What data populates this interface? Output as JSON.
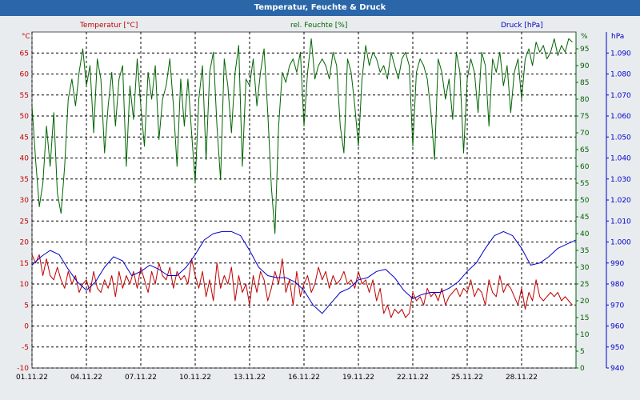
{
  "colors": {
    "temperature": "#c00000",
    "humidity": "#006400",
    "pressure": "#0000c8",
    "frame_bg": "#e9ecef",
    "title_bg": "#2a66a8",
    "plot_bg": "#ffffff",
    "grid": "#000000"
  },
  "chart_data": {
    "type": "line",
    "title": "Temperatur, Feuchte & Druck",
    "x": {
      "start_day": 1,
      "end_day": 31,
      "tick_days": [
        1,
        4,
        7,
        10,
        13,
        16,
        19,
        22,
        25,
        28
      ],
      "tick_labels": [
        "01.11.22",
        "04.11.22",
        "07.11.22",
        "10.11.22",
        "13.11.22",
        "16.11.22",
        "19.11.22",
        "22.11.22",
        "25.11.22",
        "28.11.22"
      ]
    },
    "axes": {
      "temperature": {
        "label": "Temperatur [°C]",
        "unit": "°C",
        "range": [
          -10,
          70
        ],
        "ticks": [
          -10,
          -5,
          0,
          5,
          10,
          15,
          20,
          25,
          30,
          35,
          40,
          45,
          50,
          55,
          60,
          65
        ],
        "tick_labels": [
          "-10",
          "-5",
          "0",
          "5",
          "10",
          "15",
          "20",
          "25",
          "30",
          "35",
          "40",
          "45",
          "50",
          "55",
          "60",
          "65"
        ]
      },
      "humidity": {
        "label": "rel. Feuchte [%]",
        "unit": "%",
        "range": [
          0,
          100
        ],
        "ticks": [
          0,
          5,
          10,
          15,
          20,
          25,
          30,
          35,
          40,
          45,
          50,
          55,
          60,
          65,
          70,
          75,
          80,
          85,
          90,
          95
        ],
        "tick_labels": [
          "0",
          "5",
          "10",
          "15",
          "20",
          "25",
          "30",
          "35",
          "40",
          "45",
          "50",
          "55",
          "60",
          "65",
          "70",
          "75",
          "80",
          "85",
          "90",
          "95"
        ]
      },
      "pressure": {
        "label": "Druck [hPa]",
        "unit": "hPa",
        "range": [
          940,
          1100
        ],
        "ticks": [
          940,
          950,
          960,
          970,
          980,
          990,
          1000,
          1010,
          1020,
          1030,
          1040,
          1050,
          1060,
          1070,
          1080,
          1090
        ],
        "tick_labels": [
          "940",
          "950",
          "960",
          "970",
          "980",
          "990",
          "1.000",
          "1.010",
          "1.020",
          "1.030",
          "1.040",
          "1.050",
          "1.060",
          "1.070",
          "1.080",
          "1.090"
        ]
      }
    },
    "series": [
      {
        "name": "Temperatur [°C]",
        "axis": "temperature",
        "x": [
          1.0,
          1.2,
          1.4,
          1.6,
          1.8,
          2.0,
          2.2,
          2.4,
          2.6,
          2.8,
          3.0,
          3.2,
          3.4,
          3.6,
          3.8,
          4.0,
          4.2,
          4.4,
          4.6,
          4.8,
          5.0,
          5.2,
          5.4,
          5.6,
          5.8,
          6.0,
          6.2,
          6.4,
          6.6,
          6.8,
          7.0,
          7.2,
          7.4,
          7.6,
          7.8,
          8.0,
          8.2,
          8.4,
          8.6,
          8.8,
          9.0,
          9.2,
          9.4,
          9.6,
          9.8,
          10.0,
          10.2,
          10.4,
          10.6,
          10.8,
          11.0,
          11.2,
          11.4,
          11.6,
          11.8,
          12.0,
          12.2,
          12.4,
          12.6,
          12.8,
          13.0,
          13.2,
          13.4,
          13.6,
          13.8,
          14.0,
          14.2,
          14.4,
          14.6,
          14.8,
          15.0,
          15.2,
          15.4,
          15.6,
          15.8,
          16.0,
          16.2,
          16.4,
          16.6,
          16.8,
          17.0,
          17.2,
          17.4,
          17.6,
          17.8,
          18.0,
          18.2,
          18.4,
          18.6,
          18.8,
          19.0,
          19.2,
          19.4,
          19.6,
          19.8,
          20.0,
          20.2,
          20.4,
          20.6,
          20.8,
          21.0,
          21.2,
          21.4,
          21.6,
          21.8,
          22.0,
          22.2,
          22.4,
          22.6,
          22.8,
          23.0,
          23.2,
          23.4,
          23.6,
          23.8,
          24.0,
          24.2,
          24.4,
          24.6,
          24.8,
          25.0,
          25.2,
          25.4,
          25.6,
          25.8,
          26.0,
          26.2,
          26.4,
          26.6,
          26.8,
          27.0,
          27.2,
          27.4,
          27.6,
          27.8,
          28.0,
          28.2,
          28.4,
          28.6,
          28.8,
          29.0,
          29.2,
          29.4,
          29.6,
          29.8,
          30.0,
          30.2,
          30.4,
          30.6,
          30.8
        ],
        "values": [
          17,
          15,
          17,
          12,
          16,
          12,
          11,
          14,
          11,
          9,
          13,
          10,
          12,
          8,
          10,
          11,
          8,
          13,
          9,
          8,
          11,
          9,
          12,
          7,
          13,
          9,
          12,
          10,
          13,
          9,
          14,
          11,
          8,
          13,
          10,
          15,
          12,
          11,
          14,
          9,
          13,
          11,
          12,
          10,
          16,
          12,
          9,
          13,
          7,
          11,
          6,
          15,
          9,
          12,
          10,
          14,
          6,
          12,
          8,
          10,
          5,
          12,
          8,
          13,
          11,
          6,
          9,
          13,
          10,
          16,
          8,
          11,
          5,
          13,
          7,
          10,
          12,
          8,
          10,
          14,
          11,
          13,
          9,
          12,
          10,
          11,
          13,
          10,
          11,
          9,
          13,
          10,
          11,
          8,
          11,
          6,
          9,
          3,
          5,
          2,
          4,
          3,
          4,
          2,
          3,
          8,
          6,
          7,
          5,
          9,
          7,
          8,
          6,
          9,
          5,
          7,
          8,
          9,
          7,
          9,
          8,
          11,
          7,
          9,
          8,
          5,
          11,
          8,
          7,
          12,
          8,
          10,
          9,
          7,
          5,
          9,
          4,
          8,
          6,
          11,
          7,
          6,
          7,
          8,
          7,
          8,
          6,
          7,
          6,
          5
        ]
      },
      {
        "name": "rel. Feuchte [%]",
        "axis": "humidity",
        "x": [
          1.0,
          1.2,
          1.4,
          1.6,
          1.8,
          2.0,
          2.2,
          2.4,
          2.6,
          2.8,
          3.0,
          3.2,
          3.4,
          3.6,
          3.8,
          4.0,
          4.2,
          4.4,
          4.6,
          4.8,
          5.0,
          5.2,
          5.4,
          5.6,
          5.8,
          6.0,
          6.2,
          6.4,
          6.6,
          6.8,
          7.0,
          7.2,
          7.4,
          7.6,
          7.8,
          8.0,
          8.2,
          8.4,
          8.6,
          8.8,
          9.0,
          9.2,
          9.4,
          9.6,
          9.8,
          10.0,
          10.2,
          10.4,
          10.6,
          10.8,
          11.0,
          11.2,
          11.4,
          11.6,
          11.8,
          12.0,
          12.2,
          12.4,
          12.6,
          12.8,
          13.0,
          13.2,
          13.4,
          13.6,
          13.8,
          14.0,
          14.2,
          14.4,
          14.6,
          14.8,
          15.0,
          15.2,
          15.4,
          15.6,
          15.8,
          16.0,
          16.2,
          16.4,
          16.6,
          16.8,
          17.0,
          17.2,
          17.4,
          17.6,
          17.8,
          18.0,
          18.2,
          18.4,
          18.6,
          18.8,
          19.0,
          19.2,
          19.4,
          19.6,
          19.8,
          20.0,
          20.2,
          20.4,
          20.6,
          20.8,
          21.0,
          21.2,
          21.4,
          21.6,
          21.8,
          22.0,
          22.2,
          22.4,
          22.6,
          22.8,
          23.0,
          23.2,
          23.4,
          23.6,
          23.8,
          24.0,
          24.2,
          24.4,
          24.6,
          24.8,
          25.0,
          25.2,
          25.4,
          25.6,
          25.8,
          26.0,
          26.2,
          26.4,
          26.6,
          26.8,
          27.0,
          27.2,
          27.4,
          27.6,
          27.8,
          28.0,
          28.2,
          28.4,
          28.6,
          28.8,
          29.0,
          29.2,
          29.4,
          29.6,
          29.8,
          30.0,
          30.2,
          30.4,
          30.6,
          30.8
        ],
        "values": [
          78,
          62,
          48,
          55,
          72,
          60,
          76,
          52,
          46,
          60,
          80,
          86,
          78,
          88,
          95,
          84,
          90,
          70,
          92,
          86,
          64,
          78,
          88,
          72,
          86,
          90,
          60,
          84,
          74,
          92,
          78,
          66,
          88,
          80,
          90,
          68,
          80,
          84,
          92,
          78,
          60,
          86,
          72,
          86,
          70,
          55,
          80,
          90,
          62,
          88,
          94,
          72,
          56,
          92,
          84,
          70,
          88,
          96,
          60,
          86,
          84,
          92,
          78,
          88,
          95,
          76,
          54,
          40,
          72,
          88,
          85,
          90,
          92,
          88,
          94,
          72,
          88,
          98,
          86,
          90,
          92,
          90,
          86,
          94,
          90,
          72,
          64,
          92,
          88,
          78,
          66,
          86,
          96,
          90,
          94,
          92,
          88,
          90,
          86,
          94,
          90,
          86,
          92,
          94,
          90,
          66,
          88,
          92,
          90,
          86,
          76,
          62,
          92,
          88,
          80,
          86,
          74,
          94,
          88,
          64,
          86,
          92,
          88,
          76,
          94,
          90,
          72,
          92,
          88,
          94,
          84,
          90,
          76,
          88,
          92,
          80,
          92,
          95,
          90,
          97,
          94,
          96,
          92,
          94,
          98,
          93,
          96,
          94,
          98,
          97
        ]
      },
      {
        "name": "Druck [hPa]",
        "axis": "pressure",
        "x": [
          1.0,
          1.5,
          2.0,
          2.5,
          3.0,
          3.5,
          4.0,
          4.5,
          5.0,
          5.5,
          6.0,
          6.5,
          7.0,
          7.5,
          8.0,
          8.5,
          9.0,
          9.5,
          10.0,
          10.5,
          11.0,
          11.5,
          12.0,
          12.5,
          13.0,
          13.5,
          14.0,
          14.5,
          15.0,
          15.5,
          16.0,
          16.5,
          17.0,
          17.5,
          18.0,
          18.5,
          19.0,
          19.5,
          20.0,
          20.5,
          21.0,
          21.5,
          22.0,
          22.5,
          23.0,
          23.5,
          24.0,
          24.5,
          25.0,
          25.5,
          26.0,
          26.5,
          27.0,
          27.5,
          28.0,
          28.5,
          29.0,
          29.5,
          30.0,
          30.5,
          31.0
        ],
        "values": [
          989,
          993,
          996,
          994,
          987,
          981,
          977,
          981,
          988,
          993,
          991,
          984,
          986,
          989,
          987,
          984,
          984,
          988,
          994,
          1001,
          1004,
          1005,
          1005,
          1003,
          996,
          988,
          984,
          983,
          983,
          981,
          977,
          970,
          966,
          971,
          976,
          978,
          982,
          983,
          986,
          987,
          983,
          977,
          973,
          975,
          976,
          976,
          978,
          981,
          986,
          990,
          997,
          1003,
          1005,
          1003,
          997,
          989,
          990,
          993,
          997,
          999,
          1001
        ]
      }
    ]
  }
}
